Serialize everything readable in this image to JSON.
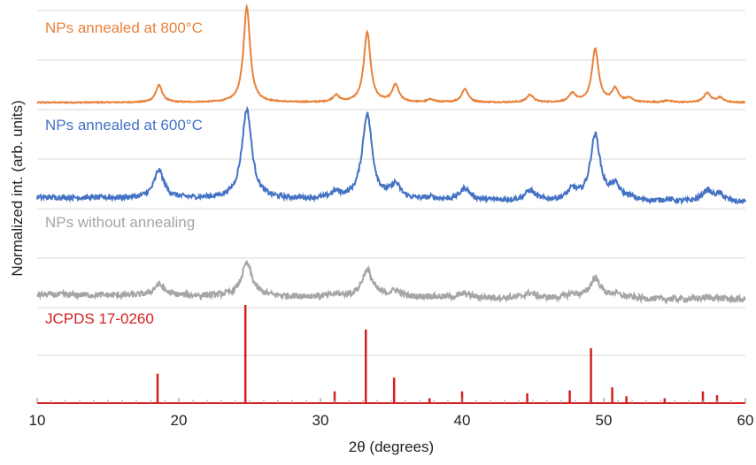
{
  "chart_data": {
    "type": "line",
    "xlabel": "2θ (degrees)",
    "ylabel": "Normalized int. (arb. units)",
    "xlim": [
      10,
      60
    ],
    "xticks": [
      "10",
      "20",
      "30",
      "40",
      "50",
      "60"
    ],
    "grid": "horizontal",
    "peaks_2theta": [
      18.6,
      24.8,
      31.1,
      33.3,
      35.3,
      37.8,
      40.2,
      44.8,
      47.8,
      49.4,
      50.8,
      51.8,
      54.5,
      57.3,
      58.2
    ],
    "series": [
      {
        "name": "NPs annealed at 800°C",
        "color": "#e8823a",
        "intensities": [
          0.18,
          1.0,
          0.07,
          0.74,
          0.18,
          0.03,
          0.14,
          0.08,
          0.09,
          0.56,
          0.14,
          0.04,
          0.02,
          0.1,
          0.05
        ],
        "noise": 0.006
      },
      {
        "name": "NPs annealed at 600°C",
        "color": "#4472c4",
        "intensities": [
          0.28,
          0.9,
          0.06,
          0.86,
          0.14,
          0.02,
          0.12,
          0.1,
          0.1,
          0.66,
          0.14,
          0.03,
          0.02,
          0.11,
          0.07
        ],
        "noise": 0.025
      },
      {
        "name": "NPs without annealing",
        "color": "#a5a5a5",
        "intensities": [
          0.11,
          0.33,
          0.02,
          0.27,
          0.06,
          0.01,
          0.04,
          0.05,
          0.04,
          0.2,
          0.04,
          0.01,
          0.0,
          0.02,
          0.01
        ],
        "noise": 0.03
      }
    ],
    "reference": {
      "name": "JCPDS 17-0260",
      "color": "#d42020",
      "lines": [
        {
          "x": 18.5,
          "y": 0.3
        },
        {
          "x": 24.7,
          "y": 1.0
        },
        {
          "x": 31.0,
          "y": 0.12
        },
        {
          "x": 33.2,
          "y": 0.75
        },
        {
          "x": 35.2,
          "y": 0.26
        },
        {
          "x": 37.7,
          "y": 0.05
        },
        {
          "x": 40.0,
          "y": 0.12
        },
        {
          "x": 44.6,
          "y": 0.1
        },
        {
          "x": 47.6,
          "y": 0.13
        },
        {
          "x": 49.1,
          "y": 0.56
        },
        {
          "x": 50.6,
          "y": 0.16
        },
        {
          "x": 51.6,
          "y": 0.07
        },
        {
          "x": 54.3,
          "y": 0.05
        },
        {
          "x": 57.0,
          "y": 0.12
        },
        {
          "x": 58.0,
          "y": 0.08
        }
      ]
    }
  }
}
